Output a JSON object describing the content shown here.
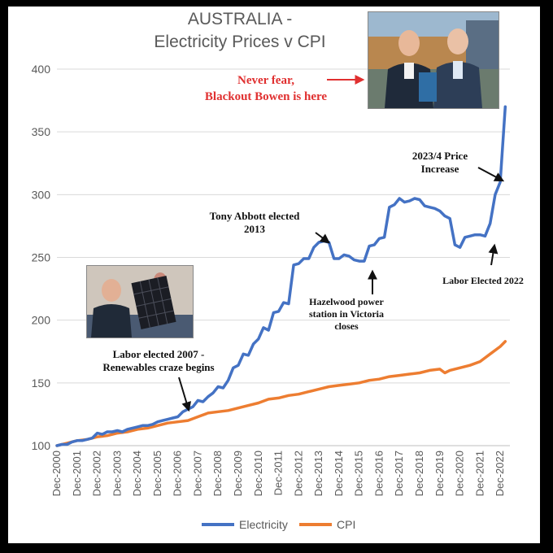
{
  "title_line1": "AUSTRALIA -",
  "title_line2": "Electricity Prices v CPI",
  "annotations": {
    "blackout": [
      "Never fear,",
      "Blackout Bowen is here"
    ],
    "price_increase": [
      "2023/4 Price",
      "Increase"
    ],
    "abbott": [
      "Tony Abbott elected",
      "2013"
    ],
    "hazelwood": [
      "Hazelwood power",
      "station in Victoria",
      "closes"
    ],
    "labor2022": [
      "Labor Elected 2022"
    ],
    "labor2007": [
      "Labor elected 2007 -",
      "Renewables craze begins"
    ]
  },
  "colors": {
    "electricity": "#4472C4",
    "cpi": "#ED7D31",
    "red_text": "#E03030",
    "grid": "#D9D9D9"
  },
  "photos": [
    "bowen-albanese-photo",
    "bowen-solar-panel-photo"
  ],
  "chart_data": {
    "type": "line",
    "ylim": [
      100,
      400
    ],
    "yticks": [
      100,
      150,
      200,
      250,
      300,
      350,
      400
    ],
    "xticks": [
      "Dec-2000",
      "Dec-2001",
      "Dec-2002",
      "Dec-2003",
      "Dec-2004",
      "Dec-2005",
      "Dec-2006",
      "Dec-2007",
      "Dec-2008",
      "Dec-2009",
      "Dec-2010",
      "Dec-2011",
      "Dec-2012",
      "Dec-2013",
      "Dec-2014",
      "Dec-2015",
      "Dec-2016",
      "Dec-2017",
      "Dec-2018",
      "Dec-2019",
      "Dec-2020",
      "Dec-2021",
      "Dec-2022"
    ],
    "grid": true,
    "legend": "bottom",
    "series": [
      {
        "name": "Electricity",
        "x": [
          2000.92,
          2001.17,
          2001.42,
          2001.67,
          2001.92,
          2002.17,
          2002.42,
          2002.67,
          2002.92,
          2003.17,
          2003.42,
          2003.67,
          2003.92,
          2004.17,
          2004.42,
          2004.67,
          2004.92,
          2005.17,
          2005.42,
          2005.67,
          2005.92,
          2006.17,
          2006.42,
          2006.67,
          2006.92,
          2007.17,
          2007.42,
          2007.67,
          2007.92,
          2008.17,
          2008.42,
          2008.67,
          2008.92,
          2009.17,
          2009.42,
          2009.67,
          2009.92,
          2010.17,
          2010.42,
          2010.67,
          2010.92,
          2011.17,
          2011.42,
          2011.67,
          2011.92,
          2012.17,
          2012.42,
          2012.67,
          2012.92,
          2013.17,
          2013.42,
          2013.67,
          2013.92,
          2014.17,
          2014.42,
          2014.67,
          2014.92,
          2015.17,
          2015.42,
          2015.67,
          2015.92,
          2016.17,
          2016.42,
          2016.67,
          2016.92,
          2017.17,
          2017.42,
          2017.67,
          2017.92,
          2018.17,
          2018.42,
          2018.67,
          2018.92,
          2019.17,
          2019.42,
          2019.67,
          2019.92,
          2020.17,
          2020.42,
          2020.67,
          2020.92,
          2021.17,
          2021.42,
          2021.67,
          2021.92,
          2022.17,
          2022.42,
          2022.67,
          2022.92,
          2023.17
        ],
        "values": [
          100,
          101,
          101,
          103,
          104,
          104,
          105,
          106,
          110,
          109,
          111,
          111,
          112,
          111,
          113,
          114,
          115,
          116,
          116,
          117,
          119,
          120,
          121,
          122,
          123,
          127,
          129,
          131,
          136,
          135,
          139,
          142,
          147,
          146,
          152,
          162,
          164,
          173,
          172,
          181,
          185,
          194,
          192,
          206,
          207,
          214,
          213,
          244,
          245,
          249,
          249,
          258,
          262,
          263,
          262,
          249,
          249,
          252,
          251,
          248,
          247,
          247,
          259,
          260,
          265,
          266,
          290,
          292,
          297,
          294,
          295,
          297,
          296,
          291,
          290,
          289,
          287,
          283,
          281,
          260,
          258,
          266,
          267,
          268,
          268,
          267,
          277,
          300,
          310,
          370
        ]
      },
      {
        "name": "CPI",
        "x": [
          2000.92,
          2001.42,
          2001.92,
          2002.42,
          2002.92,
          2003.42,
          2003.92,
          2004.42,
          2004.92,
          2005.42,
          2005.92,
          2006.42,
          2006.92,
          2007.42,
          2007.92,
          2008.42,
          2008.92,
          2009.42,
          2009.92,
          2010.42,
          2010.92,
          2011.42,
          2011.92,
          2012.42,
          2012.92,
          2013.42,
          2013.92,
          2014.42,
          2014.92,
          2015.42,
          2015.92,
          2016.42,
          2016.92,
          2017.42,
          2017.92,
          2018.42,
          2018.92,
          2019.42,
          2019.92,
          2020.17,
          2020.42,
          2020.92,
          2021.42,
          2021.92,
          2022.42,
          2022.92,
          2023.17
        ],
        "values": [
          100,
          102,
          104,
          105,
          107,
          108,
          110,
          111,
          113,
          114,
          116,
          118,
          119,
          120,
          123,
          126,
          127,
          128,
          130,
          132,
          134,
          137,
          138,
          140,
          141,
          143,
          145,
          147,
          148,
          149,
          150,
          152,
          153,
          155,
          156,
          157,
          158,
          160,
          161,
          158,
          160,
          162,
          164,
          167,
          173,
          179,
          183
        ]
      }
    ]
  }
}
